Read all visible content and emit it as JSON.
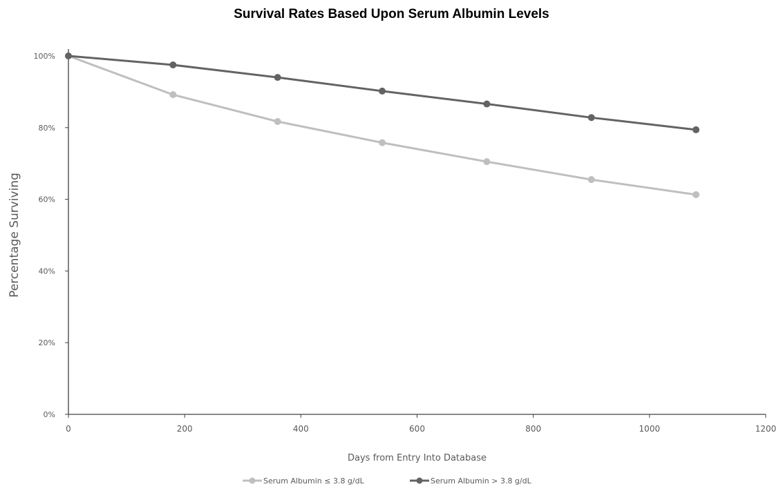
{
  "chart_data": {
    "type": "line",
    "title": "Survival Rates Based Upon Serum Albumin Levels",
    "xlabel": "Days from Entry Into Database",
    "ylabel": "Percentage Surviving",
    "xlim": [
      0,
      1200
    ],
    "ylim": [
      0,
      100
    ],
    "xticks": [
      0,
      200,
      400,
      600,
      800,
      1000,
      1200
    ],
    "xtick_labels": [
      "0",
      "200",
      "400",
      "600",
      "800",
      "1000",
      "1200"
    ],
    "yticks": [
      0,
      20,
      40,
      60,
      80,
      100
    ],
    "ytick_labels": [
      "0%",
      "20%",
      "40%",
      "60%",
      "80%",
      "100%"
    ],
    "grid": false,
    "legend_position": "bottom-center",
    "series": [
      {
        "name": "Serum Albumin ≤ 3.8 g/dL",
        "color": "#bfbfbf",
        "x": [
          0,
          180,
          360,
          540,
          720,
          900,
          1080
        ],
        "y": [
          100,
          89.2,
          81.7,
          75.8,
          70.5,
          65.5,
          61.3
        ]
      },
      {
        "name": "Serum Albumin > 3.8 g/dL",
        "color": "#636363",
        "x": [
          0,
          180,
          360,
          540,
          720,
          900,
          1080
        ],
        "y": [
          100,
          97.5,
          94,
          90.2,
          86.6,
          82.8,
          79.4
        ]
      }
    ]
  }
}
